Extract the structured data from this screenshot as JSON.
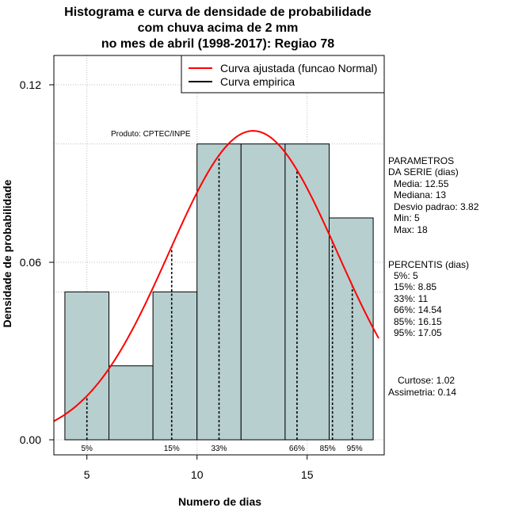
{
  "title_lines": [
    "Histograma e curva de densidade de probabilidade",
    "com chuva acima de 2 mm",
    "no mes de abril (1998-2017): Regiao 78"
  ],
  "credit": "Produto: CPTEC/INPE",
  "xlabel": "Numero de dias",
  "ylabel": "Densidade de probabilidade",
  "legend": [
    {
      "label": "Curva ajustada (funcao Normal)",
      "color": "#ff0000"
    },
    {
      "label": "Curva empirica",
      "color": "#000000"
    }
  ],
  "parametros": {
    "heading": [
      "PARAMETROS",
      "DA SERIE (dias)"
    ],
    "items": [
      "Media: 12.55",
      "Mediana: 13",
      "Desvio padrao: 3.82",
      "Min: 5",
      "Max: 18"
    ]
  },
  "percentis": {
    "heading": "PERCENTIS (dias)",
    "items": [
      "5%: 5",
      "15%: 8.85",
      "33%: 11",
      "66%: 14.54",
      "85%: 16.15",
      "95%: 17.05"
    ]
  },
  "stats": [
    "Curtose: 1.02",
    "Assimetria: 0.14"
  ],
  "colors": {
    "bar_fill": "#b8cfcf",
    "fit_curve": "#ff0000",
    "grid": "#bdbdbd"
  },
  "chart_data": {
    "type": "bar",
    "bins": [
      {
        "x0": 4,
        "x1": 6,
        "density": 0.05
      },
      {
        "x0": 6,
        "x1": 8,
        "density": 0.025
      },
      {
        "x0": 8,
        "x1": 10,
        "density": 0.05
      },
      {
        "x0": 10,
        "x1": 12,
        "density": 0.1
      },
      {
        "x0": 12,
        "x1": 14,
        "density": 0.1
      },
      {
        "x0": 14,
        "x1": 16,
        "density": 0.1
      },
      {
        "x0": 16,
        "x1": 18,
        "density": 0.075
      }
    ],
    "normal_fit": {
      "mean": 12.55,
      "sd": 3.82
    },
    "percentiles": [
      {
        "label": "5%",
        "value": 5
      },
      {
        "label": "15%",
        "value": 8.85
      },
      {
        "label": "33%",
        "value": 11
      },
      {
        "label": "66%",
        "value": 14.54
      },
      {
        "label": "85%",
        "value": 16.15
      },
      {
        "label": "95%",
        "value": 17.05
      }
    ],
    "xlim": [
      3.5,
      18.5
    ],
    "ylim": [
      0,
      0.135
    ],
    "x_ticks": [
      5,
      10,
      15
    ],
    "y_ticks": [
      0.0,
      0.06,
      0.12
    ],
    "y_tick_labels": [
      "0.00",
      "0.06",
      "0.12"
    ],
    "grid": true,
    "legend_position": "top-right"
  }
}
